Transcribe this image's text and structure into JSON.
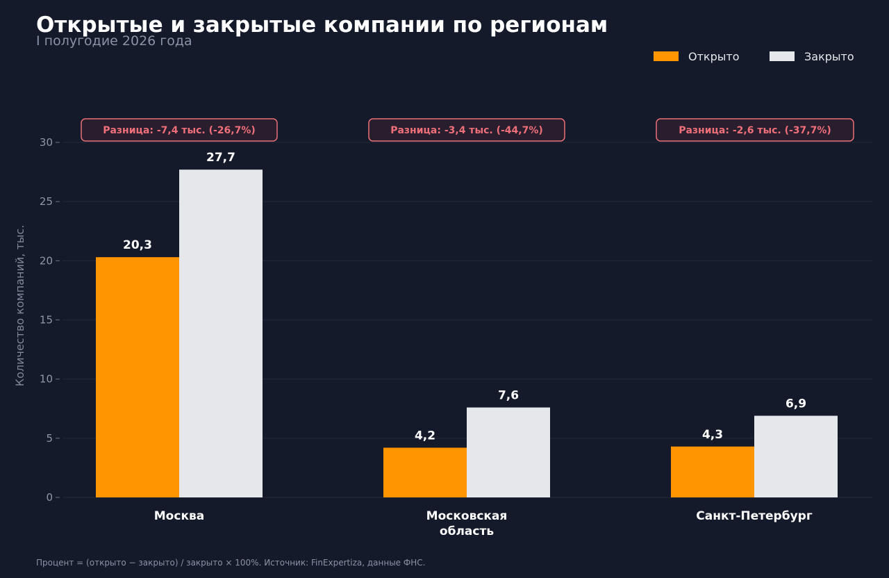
{
  "colors": {
    "background": "#141a2a",
    "opened": "#ff9500",
    "closed": "#e5e7eb",
    "grid": "#222a3b",
    "diff_border": "#e8707a",
    "diff_fill": "#3a2230"
  },
  "chart_data": {
    "type": "bar",
    "title": "Открытые и закрытые компании по регионам",
    "subtitle": "I полугодие 2026 года",
    "ylabel": "Количество компаний, тыс.",
    "xlabel": "",
    "ylim": [
      0,
      30
    ],
    "yticks": [
      "0",
      "5",
      "10",
      "15",
      "20",
      "25",
      "30"
    ],
    "grid": true,
    "legend_position": "top-right",
    "categories": [
      [
        "Москва"
      ],
      [
        "Московская",
        "область"
      ],
      [
        "Санкт-Петербург"
      ]
    ],
    "series": [
      {
        "name": "Открыто",
        "values": [
          20.3,
          4.2,
          4.3
        ],
        "labels": [
          "20,3",
          "4,2",
          "4,3"
        ]
      },
      {
        "name": "Закрыто",
        "values": [
          27.7,
          7.6,
          6.9
        ],
        "labels": [
          "27,7",
          "7,6",
          "6,9"
        ]
      }
    ],
    "annotations": [
      "Разница: -7,4 тыс.  (-26,7%)",
      "Разница: -3,4 тыс.  (-44,7%)",
      "Разница: -2,6 тыс.  (-37,7%)"
    ],
    "footnote": "Процент = (открыто − закрыто) / закрыто × 100%. Источник: FinExpertiza, данные ФНС."
  }
}
